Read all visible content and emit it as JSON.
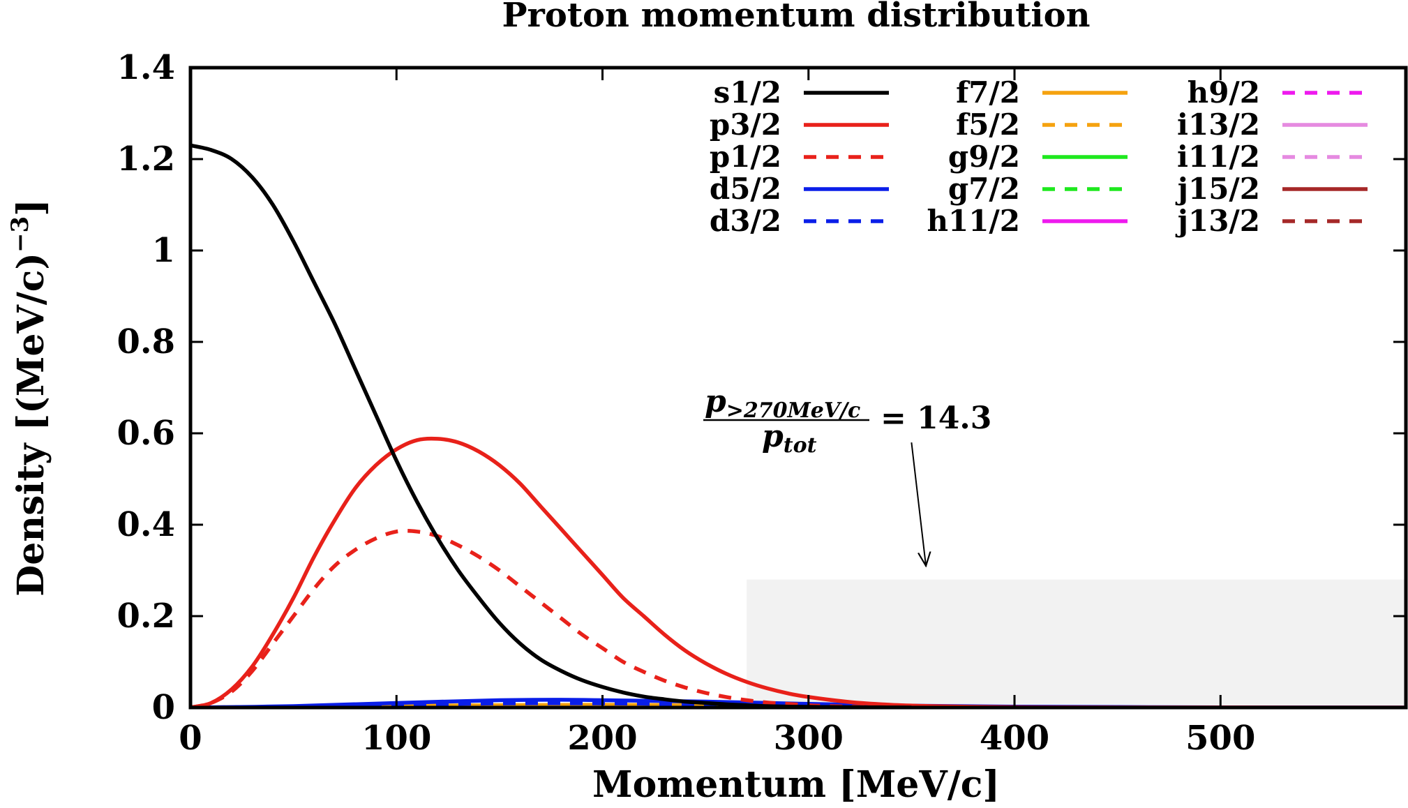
{
  "chart_data": {
    "type": "line",
    "title": "Proton momentum distribution",
    "xlabel": "Momentum [MeV/c]",
    "ylabel": "Density [(MeV/c)",
    "ylabel_exponent": "−3",
    "ylabel_close": "]",
    "xlim": [
      0,
      590
    ],
    "ylim": [
      0,
      1.4
    ],
    "x_ticks": [
      0,
      100,
      200,
      300,
      400,
      500
    ],
    "x_tick_labels": [
      "0",
      "100",
      "200",
      "300",
      "400",
      "500"
    ],
    "y_ticks": [
      0,
      0.2,
      0.4,
      0.6,
      0.8,
      1.0,
      1.2,
      1.4
    ],
    "y_tick_labels": [
      "0",
      "0.2",
      "0.4",
      "0.6",
      "0.8",
      "1",
      "1.2",
      "1.4"
    ],
    "grid": false,
    "legend_position": "top-right",
    "shaded_region": {
      "x_from": 270,
      "x_to": 590,
      "y_from": 0,
      "y_to": 0.28,
      "color": "#f2f2f2"
    },
    "annotation": {
      "numerator": "p",
      "numerator_sub": ">270MeV/c",
      "denominator": "p",
      "denominator_sub": "tot",
      "equals_text": "= 14.3",
      "arrow_from": [
        350,
        0.58
      ],
      "arrow_to": [
        357,
        0.31
      ]
    },
    "series": [
      {
        "name": "s1/2",
        "color": "#000000",
        "dash": false,
        "x": [
          0,
          10,
          20,
          30,
          40,
          50,
          60,
          70,
          80,
          90,
          100,
          110,
          120,
          130,
          140,
          150,
          160,
          170,
          180,
          190,
          200,
          210,
          220,
          230,
          240,
          250,
          260,
          270,
          280,
          290,
          300,
          310,
          320,
          330,
          340,
          350
        ],
        "values": [
          1.23,
          1.22,
          1.2,
          1.16,
          1.1,
          1.02,
          0.93,
          0.84,
          0.74,
          0.64,
          0.54,
          0.45,
          0.37,
          0.3,
          0.24,
          0.185,
          0.14,
          0.105,
          0.08,
          0.06,
          0.045,
          0.033,
          0.024,
          0.018,
          0.013,
          0.01,
          0.007,
          0.005,
          0.003,
          0.002,
          0.0015,
          0.001,
          0.0007,
          0.0004,
          0.0002,
          0.0
        ]
      },
      {
        "name": "p3/2",
        "color": "#e8211a",
        "dash": false,
        "x": [
          0,
          10,
          20,
          30,
          40,
          50,
          60,
          70,
          80,
          90,
          100,
          110,
          120,
          130,
          140,
          150,
          160,
          170,
          180,
          190,
          200,
          210,
          220,
          230,
          240,
          250,
          260,
          270,
          280,
          290,
          300,
          320,
          340,
          360,
          380,
          400,
          420,
          450,
          500,
          590
        ],
        "values": [
          0.0,
          0.01,
          0.04,
          0.09,
          0.16,
          0.24,
          0.33,
          0.41,
          0.48,
          0.53,
          0.565,
          0.585,
          0.588,
          0.58,
          0.56,
          0.53,
          0.49,
          0.44,
          0.39,
          0.34,
          0.29,
          0.24,
          0.2,
          0.16,
          0.125,
          0.097,
          0.074,
          0.056,
          0.042,
          0.031,
          0.023,
          0.012,
          0.006,
          0.003,
          0.0015,
          0.0008,
          0.0004,
          0.0002,
          0.0001,
          0.0
        ]
      },
      {
        "name": "p1/2",
        "color": "#e8211a",
        "dash": true,
        "x": [
          0,
          10,
          20,
          30,
          40,
          50,
          60,
          70,
          80,
          90,
          100,
          110,
          120,
          130,
          140,
          150,
          160,
          170,
          180,
          190,
          200,
          210,
          220,
          230,
          240,
          250,
          260,
          270,
          280,
          290,
          300,
          310,
          320,
          340,
          360,
          400,
          450
        ],
        "values": [
          0.0,
          0.01,
          0.035,
          0.08,
          0.14,
          0.2,
          0.26,
          0.31,
          0.345,
          0.37,
          0.385,
          0.385,
          0.375,
          0.355,
          0.33,
          0.3,
          0.265,
          0.23,
          0.195,
          0.16,
          0.13,
          0.1,
          0.078,
          0.059,
          0.044,
          0.032,
          0.023,
          0.016,
          0.011,
          0.008,
          0.005,
          0.003,
          0.002,
          0.001,
          0.0005,
          0.0001,
          0.0
        ]
      },
      {
        "name": "d5/2",
        "color": "#0a1ee8",
        "dash": false,
        "x": [
          0,
          50,
          100,
          150,
          180,
          200,
          250,
          300,
          350,
          400,
          450,
          500,
          590
        ],
        "values": [
          0.0,
          0.003,
          0.01,
          0.016,
          0.017,
          0.016,
          0.013,
          0.008,
          0.004,
          0.002,
          0.001,
          0.0005,
          0.0
        ]
      },
      {
        "name": "d3/2",
        "color": "#0a1ee8",
        "dash": true,
        "x": [
          0,
          50,
          100,
          150,
          200,
          250,
          300,
          350,
          400,
          500
        ],
        "values": [
          0.0,
          0.002,
          0.006,
          0.009,
          0.009,
          0.007,
          0.004,
          0.002,
          0.001,
          0.0
        ]
      },
      {
        "name": "f7/2",
        "color": "#f5a20f",
        "dash": false,
        "x": [
          0,
          100,
          200,
          300,
          400,
          500
        ],
        "values": [
          0.0,
          0.004,
          0.006,
          0.004,
          0.001,
          0.0
        ]
      },
      {
        "name": "f5/2",
        "color": "#f5a20f",
        "dash": true,
        "x": [
          0,
          100,
          200,
          300,
          400,
          500
        ],
        "values": [
          0.0,
          0.003,
          0.005,
          0.003,
          0.001,
          0.0
        ]
      },
      {
        "name": "g9/2",
        "color": "#1ee81e",
        "dash": false,
        "x": [
          0,
          100,
          200,
          300,
          400,
          500
        ],
        "values": [
          0.0,
          0.003,
          0.005,
          0.003,
          0.001,
          0.0
        ]
      },
      {
        "name": "g7/2",
        "color": "#1ee81e",
        "dash": true,
        "x": [
          0,
          100,
          200,
          300,
          400,
          500
        ],
        "values": [
          0.0,
          0.002,
          0.004,
          0.002,
          0.001,
          0.0
        ]
      },
      {
        "name": "h11/2",
        "color": "#ee1aee",
        "dash": false,
        "x": [
          0,
          100,
          200,
          300,
          400,
          500
        ],
        "values": [
          0.0,
          0.001,
          0.002,
          0.001,
          0.0,
          0.0
        ]
      },
      {
        "name": "h9/2",
        "color": "#ee1aee",
        "dash": true,
        "x": [
          0,
          100,
          200,
          300,
          400,
          500
        ],
        "values": [
          0.0,
          0.001,
          0.002,
          0.001,
          0.0,
          0.0
        ]
      },
      {
        "name": "i13/2",
        "color": "#e58ae0",
        "dash": false,
        "x": [
          0,
          100,
          200,
          300,
          400,
          500
        ],
        "values": [
          0.0,
          0.0005,
          0.001,
          0.0005,
          0.0,
          0.0
        ]
      },
      {
        "name": "i11/2",
        "color": "#e58ae0",
        "dash": true,
        "x": [
          0,
          100,
          200,
          300,
          400,
          500
        ],
        "values": [
          0.0,
          0.0005,
          0.001,
          0.0005,
          0.0,
          0.0
        ]
      },
      {
        "name": "j15/2",
        "color": "#a52828",
        "dash": false,
        "x": [
          0,
          100,
          200,
          300,
          400,
          500
        ],
        "values": [
          0.0,
          0.0003,
          0.0005,
          0.0003,
          0.0,
          0.0
        ]
      },
      {
        "name": "j13/2",
        "color": "#a52828",
        "dash": true,
        "x": [
          0,
          100,
          200,
          300,
          400,
          500
        ],
        "values": [
          0.0,
          0.0003,
          0.0005,
          0.0003,
          0.0,
          0.0
        ]
      }
    ]
  }
}
